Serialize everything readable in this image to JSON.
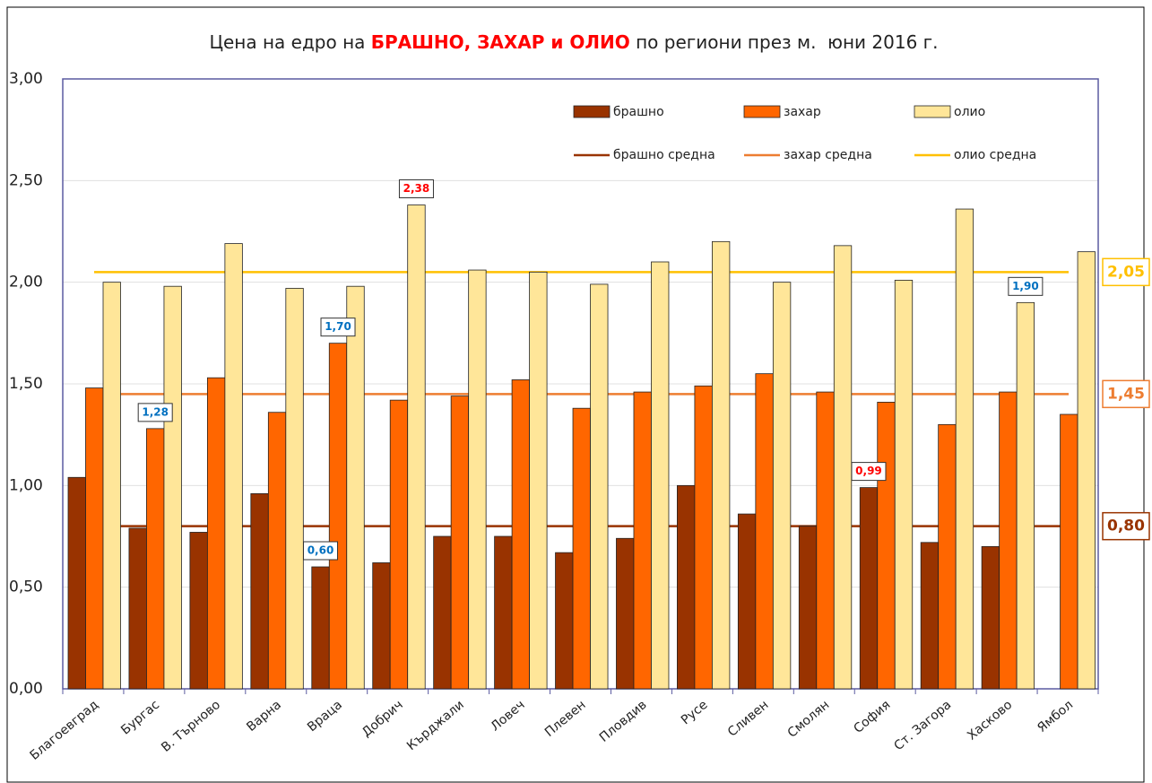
{
  "chart_data": {
    "type": "bar",
    "title": {
      "before": "Цена на едро на ",
      "highlight": "БРАШНО, ЗАХАР и ОЛИО",
      "after": " по региони през м.  юни 2016 г."
    },
    "categories": [
      "Благоевград",
      "Бургас",
      "В. Търново",
      "Варна",
      "Враца",
      "Добрич",
      "Кърджали",
      "Ловеч",
      "Плевен",
      "Пловдив",
      "Русе",
      "Сливен",
      "Смолян",
      "София",
      "Ст. Загора",
      "Хасково",
      "Ямбол"
    ],
    "series": [
      {
        "name": "брашно",
        "color": "#993300",
        "values": [
          1.04,
          0.79,
          0.77,
          0.96,
          0.6,
          0.62,
          0.75,
          0.75,
          0.67,
          0.74,
          1.0,
          0.86,
          0.8,
          0.99,
          0.72,
          0.7,
          null
        ],
        "value_labels": [
          null,
          null,
          null,
          null,
          "0,60",
          null,
          null,
          null,
          null,
          null,
          null,
          null,
          null,
          "0,99",
          null,
          null,
          null
        ],
        "value_label_colors": [
          null,
          null,
          null,
          null,
          "#0070c0",
          null,
          null,
          null,
          null,
          null,
          null,
          null,
          null,
          "#ff0000",
          null,
          null,
          null
        ]
      },
      {
        "name": "захар",
        "color": "#ff6600",
        "values": [
          1.48,
          1.28,
          1.53,
          1.36,
          1.7,
          1.42,
          1.44,
          1.52,
          1.38,
          1.46,
          1.49,
          1.55,
          1.46,
          1.41,
          1.3,
          1.46,
          1.35
        ],
        "value_labels": [
          null,
          "1,28",
          null,
          null,
          "1,70",
          null,
          null,
          null,
          null,
          null,
          null,
          null,
          null,
          null,
          null,
          null,
          null
        ],
        "value_label_colors": [
          null,
          "#0070c0",
          null,
          null,
          "#0070c0",
          null,
          null,
          null,
          null,
          null,
          null,
          null,
          null,
          null,
          null,
          null,
          null
        ]
      },
      {
        "name": "олио",
        "color": "#ffe699",
        "values": [
          2.0,
          1.98,
          2.19,
          1.97,
          1.98,
          2.38,
          2.06,
          2.05,
          1.99,
          2.1,
          2.2,
          2.0,
          2.18,
          2.01,
          2.36,
          1.9,
          2.15
        ],
        "value_labels": [
          null,
          null,
          null,
          null,
          null,
          "2,38",
          null,
          null,
          null,
          null,
          null,
          null,
          null,
          null,
          null,
          "1,90",
          null
        ],
        "value_label_colors": [
          null,
          null,
          null,
          null,
          null,
          "#ff0000",
          null,
          null,
          null,
          null,
          null,
          null,
          null,
          null,
          null,
          "#0070c0",
          null
        ]
      }
    ],
    "reference_lines": [
      {
        "name": "брашно средна",
        "color": "#993300",
        "value": 0.8,
        "label": "0,80"
      },
      {
        "name": "захар средна",
        "color": "#ed7d31",
        "value": 1.45,
        "label": "1,45"
      },
      {
        "name": "олио средна",
        "color": "#ffc000",
        "value": 2.05,
        "label": "2,05"
      }
    ],
    "ylim": [
      0,
      3
    ],
    "yticks": [
      {
        "value": 0,
        "label": "0,00"
      },
      {
        "value": 0.5,
        "label": "0,50"
      },
      {
        "value": 1,
        "label": "1,00"
      },
      {
        "value": 1.5,
        "label": "1,50"
      },
      {
        "value": 2,
        "label": "2,00"
      },
      {
        "value": 2.5,
        "label": "2,50"
      },
      {
        "value": 3,
        "label": "3,00"
      }
    ],
    "grid": true
  }
}
